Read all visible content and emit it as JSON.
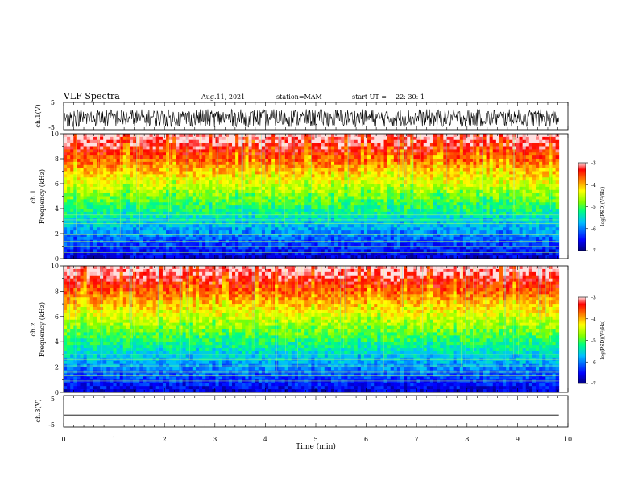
{
  "header": {
    "title": "VLF Spectra",
    "date": "Aug.11, 2021",
    "station": "station=MAM",
    "start_label": "start UT =",
    "start_time": "22: 30: 1"
  },
  "chart_data": [
    {
      "type": "line",
      "name": "waveform-ch1",
      "ylabel": "ch.1(V)",
      "ylim": [
        -5,
        5
      ],
      "ytick_labels": [
        "5",
        "-5"
      ],
      "xlim": [
        0,
        10
      ],
      "data_extent_min": 9.82,
      "trace_band": [
        -4,
        2.5
      ]
    },
    {
      "type": "heatmap",
      "name": "spectrogram-ch1",
      "ylabel_top": "ch.1",
      "ylabel": "Frequency (kHz)",
      "ylim": [
        0,
        10
      ],
      "ytick_labels": [
        "0",
        "2",
        "4",
        "6",
        "8",
        "10"
      ],
      "xlim": [
        0,
        10
      ],
      "data_extent_min": 9.82,
      "colorbar": {
        "label": "log(PSD)(V²/Hz)",
        "range": [
          -7,
          -3
        ],
        "tick_labels": [
          "-3",
          "-4",
          "-5",
          "-6",
          "-7"
        ]
      },
      "line_freqs_khz": [
        0.5,
        1.0,
        1.4,
        1.9,
        2.3,
        2.8,
        3.1,
        3.5
      ]
    },
    {
      "type": "heatmap",
      "name": "spectrogram-ch2",
      "ylabel_top": "ch.2",
      "ylabel": "Frequency (kHz)",
      "ylim": [
        0,
        10
      ],
      "ytick_labels": [
        "0",
        "2",
        "4",
        "6",
        "8",
        "10"
      ],
      "xlim": [
        0,
        10
      ],
      "data_extent_min": 9.82,
      "colorbar": {
        "label": "log(PSD)(V²/Hz)",
        "range": [
          -7,
          -3
        ],
        "tick_labels": [
          "-3",
          "-4",
          "-5",
          "-6",
          "-7"
        ]
      },
      "line_freqs_khz": [
        0.4,
        0.9,
        1.3,
        1.6,
        2.1,
        2.6,
        3.0
      ]
    },
    {
      "type": "line",
      "name": "waveform-ch3",
      "ylabel": "ch.3(V)",
      "ylim": [
        -5,
        5
      ],
      "ytick_labels": [
        "5",
        "-5"
      ],
      "xlim": [
        0,
        10
      ],
      "xlabel": "Time (min)",
      "xtick_labels": [
        "0",
        "1",
        "2",
        "3",
        "4",
        "5",
        "6",
        "7",
        "8",
        "9",
        "10"
      ],
      "constant_value": -1.2
    }
  ],
  "colors": {
    "colormap": [
      "#00007f",
      "#0000ff",
      "#00bfff",
      "#00ff80",
      "#80ff00",
      "#ffff00",
      "#ff8000",
      "#ff0000",
      "#ffffff"
    ],
    "axis": "#000000",
    "background": "#ffffff"
  }
}
